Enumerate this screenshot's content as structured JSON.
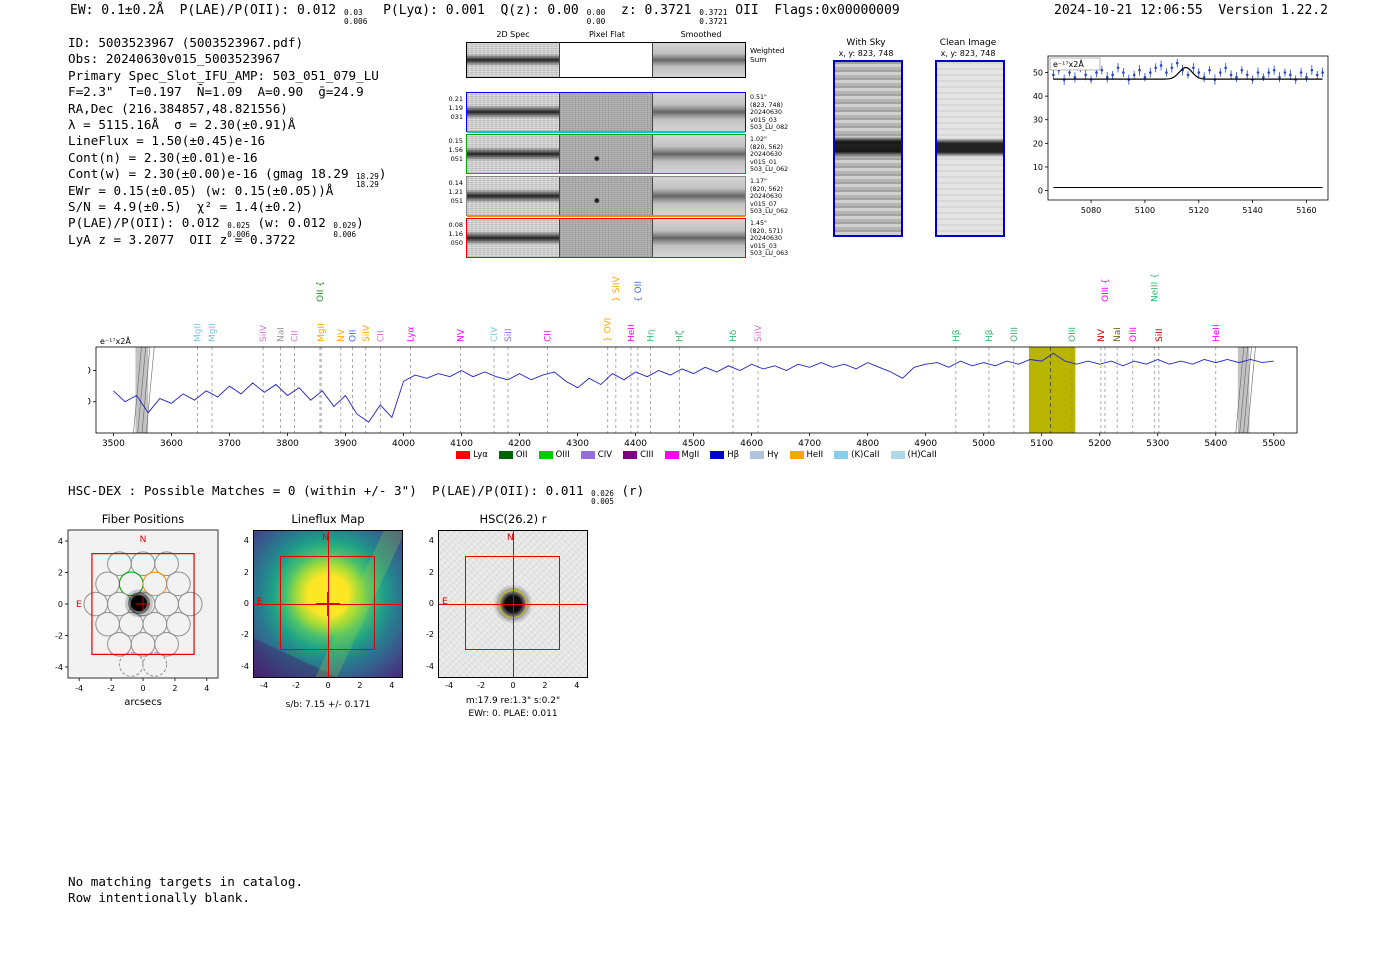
{
  "header": {
    "segments": [
      {
        "t": "EW: 0.1±0.2Å  P(LAE)/P(OII): 0.012 "
      },
      {
        "sup": "0.03",
        "sub": "0.006"
      },
      {
        "t": "  P(Lyα): 0.001  Q(z): 0.00 "
      },
      {
        "sup": "0.00",
        "sub": "0.00"
      },
      {
        "t": "  z: 0.3721 "
      },
      {
        "sup": "0.3721",
        "sub": "0.3721"
      },
      {
        "t": " OII  Flags:0x00000009"
      }
    ],
    "timestamp": "2024-10-21 12:06:55  Version 1.22.2"
  },
  "info": {
    "lines": [
      [
        {
          "t": "ID: 5003523967 (5003523967.pdf)"
        }
      ],
      [
        {
          "t": "Obs: 20240630v015_5003523967"
        }
      ],
      [
        {
          "t": "Primary Spec_Slot_IFU_AMP: 503_051_079_LU"
        }
      ],
      [
        {
          "t": "F=2.3\"  T=0.197  N̄=1.09  A=0.90  ḡ=24.9"
        }
      ],
      [
        {
          "t": "RA,Dec (216.384857,48.821556)"
        }
      ],
      [
        {
          "t": "λ = 5115.16Å  σ = 2.30(±0.91)Å"
        }
      ],
      [
        {
          "t": "LineFlux = 1.50(±0.45)e-16"
        }
      ],
      [
        {
          "t": "Cont(n) = 2.30(±0.01)e-16"
        }
      ],
      [
        {
          "t": "Cont(w) = 2.30(±0.00)e-16 (gmag 18.29 "
        },
        {
          "sup": "18.29",
          "sub": "18.29"
        },
        {
          "t": ")"
        }
      ],
      [
        {
          "t": "EWr = 0.15(±0.05) (w: 0.15(±0.05))Å"
        }
      ],
      [
        {
          "t": "S/N = 4.9(±0.5)  χ² = 1.4(±0.2)"
        }
      ],
      [
        {
          "t": "P(LAE)/P(OII): 0.012 "
        },
        {
          "sup": "0.025",
          "sub": "0.006"
        },
        {
          "t": " (w: 0.012 "
        },
        {
          "sup": "0.029",
          "sub": "0.006"
        },
        {
          "t": ")"
        }
      ],
      [
        {
          "t": "LyA z = 3.2077  OII z = 0.3722"
        }
      ]
    ]
  },
  "cutouts": {
    "col_titles": [
      "2D Spec",
      "Pixel Flat",
      "Smoothed"
    ],
    "weighted_label": [
      "Weighted",
      "Sum"
    ],
    "rows": [
      {
        "left": [
          "0.21",
          "1.19",
          "031"
        ],
        "right": [
          "0.51\"",
          "(823, 748)",
          "20240630",
          "v015_03",
          "503_LU_082"
        ],
        "border": "#0000ee",
        "accent": "#00c8c8"
      },
      {
        "left": [
          "0.15",
          "1.56",
          "051"
        ],
        "right": [
          "1.02\"",
          "(820, 562)",
          "20240630",
          "v015_01",
          "503_LU_062"
        ],
        "border": "#00aa00",
        "accent": ""
      },
      {
        "left": [
          "0.14",
          "1.21",
          "051"
        ],
        "right": [
          "1.17\"",
          "(820, 562)",
          "20240630",
          "v015_07",
          "503_LU_062"
        ],
        "border": "#888888",
        "accent": "#ff8800"
      },
      {
        "left": [
          "0.08",
          "1.16",
          "050"
        ],
        "right": [
          "1.45\"",
          "(820, 571)",
          "20240630",
          "v015_03",
          "503_LU_063"
        ],
        "border": "#ee0000",
        "accent": ""
      }
    ]
  },
  "sky_panels": {
    "with_sky": {
      "title": "With Sky",
      "subtitle": "x, y: 823, 748"
    },
    "clean": {
      "title": "Clean Image",
      "subtitle": "x, y: 823, 748"
    }
  },
  "matches": {
    "segments": [
      {
        "t": "HSC-DEX : Possible Matches = 0 (within +/- 3\")  P(LAE)/P(OII): 0.011 "
      },
      {
        "sup": "0.026",
        "sub": "0.005"
      },
      {
        "t": " (r)"
      }
    ]
  },
  "panels": {
    "ticks": [
      -4,
      -2,
      0,
      2,
      4
    ],
    "fiber": {
      "title": "Fiber Positions"
    },
    "lineflux": {
      "title": "Lineflux Map",
      "caption": "s/b: 7.15 +/- 0.171",
      "n": "N",
      "e": "E"
    },
    "hsc": {
      "title": "HSC(26.2) r",
      "caption1": "m:17.9 re:1.3\" s:0.2\"",
      "caption2": "EWr: 0. PLAE: 0.011",
      "n": "N",
      "e": "E"
    }
  },
  "footer": {
    "line1": "No matching targets in catalog.",
    "line2": "Row intentionally blank."
  },
  "chart_data": [
    {
      "type": "scatter",
      "annotation": "e⁻¹⁷x2Å",
      "xlim": [
        5064,
        5168
      ],
      "ylim": [
        -4,
        57
      ],
      "xticks": [
        5080,
        5100,
        5120,
        5140,
        5160
      ],
      "yticks": [
        0,
        10,
        20,
        30,
        40,
        50
      ],
      "x_start": 5066,
      "x_step": 2,
      "y": [
        49,
        51,
        47,
        50,
        48,
        52,
        49,
        47,
        50,
        51,
        48,
        49,
        52,
        50,
        47,
        49,
        51,
        48,
        50,
        52,
        53,
        50,
        52,
        54,
        51,
        49,
        52,
        50,
        48,
        51,
        47,
        50,
        52,
        49,
        48,
        51,
        49,
        47,
        50,
        48,
        50,
        51,
        48,
        50,
        49,
        47,
        50,
        48,
        51,
        49,
        50
      ],
      "yerr": [
        2.0,
        1.8,
        2.2,
        1.6,
        2.1,
        1.9,
        2.3,
        1.7,
        2.0,
        1.8,
        2.2,
        1.6,
        2.0,
        1.9,
        2.1,
        1.7,
        2.2,
        1.8,
        2.0,
        1.9,
        2.1,
        1.7,
        2.0,
        1.8,
        2.2,
        1.6,
        2.0,
        1.9,
        2.1,
        1.7,
        2.2,
        1.8,
        2.0,
        1.9,
        2.1,
        1.7,
        2.0,
        1.8,
        2.2,
        1.6,
        2.0,
        1.9,
        2.1,
        1.7,
        2.2,
        1.8,
        2.0,
        1.9,
        2.1,
        1.7,
        2.0
      ],
      "fit": {
        "baseline": 47.2,
        "amplitude": 5.0,
        "center": 5115.16,
        "sigma": 2.3
      },
      "residual_level": 1.3,
      "point_color": "#2244cc",
      "fit_color": "#000000"
    },
    {
      "type": "line",
      "annotation": "e⁻¹⁷x2Å",
      "xlim": [
        3470,
        5540
      ],
      "ylim": [
        0,
        55
      ],
      "xticks": [
        3500,
        3600,
        3700,
        3800,
        3900,
        4000,
        4100,
        4200,
        4300,
        4400,
        4500,
        4600,
        4700,
        4800,
        4900,
        5000,
        5100,
        5200,
        5300,
        5400,
        5500
      ],
      "yticks": [
        20,
        40
      ],
      "line_color": "#2222cc",
      "x_start": 3500,
      "x_step": 20,
      "y": [
        27,
        20,
        24,
        13,
        22,
        19,
        25,
        21,
        27,
        23,
        30,
        25,
        32,
        26,
        31,
        24,
        29,
        21,
        27,
        17,
        24,
        12,
        7,
        18,
        10,
        33,
        37,
        35,
        38,
        36,
        40,
        36,
        39,
        36,
        34,
        38,
        34,
        37,
        39,
        33,
        29,
        35,
        31,
        38,
        34,
        39,
        36,
        40,
        37,
        41,
        38,
        42,
        39,
        43,
        40,
        44,
        41,
        43,
        40,
        44,
        42,
        45,
        42,
        44,
        41,
        45,
        42,
        39,
        35,
        42,
        44,
        45,
        42,
        46,
        43,
        45,
        43,
        46,
        44,
        47,
        46,
        51,
        46,
        44,
        46,
        44,
        46,
        43,
        46,
        44,
        47,
        44,
        46,
        44,
        47,
        45,
        47,
        45,
        47,
        45,
        46
      ],
      "highlight_band": {
        "x0": 5078,
        "x1": 5158,
        "color": "#b8b400"
      },
      "hatch_bands": [
        {
          "x0": 3538,
          "x1": 3560
        },
        {
          "x0": 5438,
          "x1": 5458
        }
      ],
      "detection_line": 5115.16,
      "markers": [
        {
          "label": "MgII",
          "wl": 3645,
          "color": "#7ec8e3",
          "tier": 0
        },
        {
          "label": "MgII",
          "wl": 3670,
          "color": "#7ec8e3",
          "tier": 0
        },
        {
          "label": "SiIV",
          "wl": 3758,
          "color": "#da70d6",
          "tier": 0
        },
        {
          "label": "NaI",
          "wl": 3788,
          "color": "#999999",
          "tier": 0
        },
        {
          "label": "CII",
          "wl": 3812,
          "color": "#da70d6",
          "tier": 0
        },
        {
          "label": "OII {",
          "wl": 3856,
          "color": "#228b22",
          "tier": 1
        },
        {
          "label": "MgII",
          "wl": 3858,
          "color": "#ffa500",
          "tier": 0
        },
        {
          "label": "NV",
          "wl": 3892,
          "color": "#ffa500",
          "tier": 0
        },
        {
          "label": "OII",
          "wl": 3912,
          "color": "#4169e1",
          "tier": 0
        },
        {
          "label": "SiIV",
          "wl": 3935,
          "color": "#ffa500",
          "tier": 0
        },
        {
          "label": "CII",
          "wl": 3960,
          "color": "#da70d6",
          "tier": 0
        },
        {
          "label": "Lyα",
          "wl": 4012,
          "color": "#ff00ff",
          "tier": 0
        },
        {
          "label": "NV",
          "wl": 4098,
          "color": "#ff00ff",
          "tier": 0
        },
        {
          "label": "CIV",
          "wl": 4156,
          "color": "#7ec8e3",
          "tier": 0
        },
        {
          "label": "SiII",
          "wl": 4180,
          "color": "#9370db",
          "tier": 0
        },
        {
          "label": "CII",
          "wl": 4248,
          "color": "#ff00ff",
          "tier": 0
        },
        {
          "label": "} OVI",
          "wl": 4352,
          "color": "#ffa500",
          "tier": 0
        },
        {
          "label": "} SiIV",
          "wl": 4366,
          "color": "#ffa500",
          "tier": 1
        },
        {
          "label": "HeII",
          "wl": 4392,
          "color": "#ff00ff",
          "tier": 0
        },
        {
          "label": "{ OII",
          "wl": 4404,
          "color": "#4169e1",
          "tier": 1
        },
        {
          "label": "Hη",
          "wl": 4426,
          "color": "#3cb371",
          "tier": 0
        },
        {
          "label": "Hζ",
          "wl": 4476,
          "color": "#3cb371",
          "tier": 0
        },
        {
          "label": "Hδ",
          "wl": 4568,
          "color": "#3cb371",
          "tier": 0
        },
        {
          "label": "SiIV",
          "wl": 4611,
          "color": "#da70d6",
          "tier": 0
        },
        {
          "label": "Hβ",
          "wl": 4952,
          "color": "#3cb371",
          "tier": 0
        },
        {
          "label": "Hβ",
          "wl": 5009,
          "color": "#3cb371",
          "tier": 0
        },
        {
          "label": "OIII",
          "wl": 5052,
          "color": "#3cb371",
          "tier": 0
        },
        {
          "label": "OIII",
          "wl": 5152,
          "color": "#3cb371",
          "tier": 0
        },
        {
          "label": "NV",
          "wl": 5202,
          "color": "#cc0000",
          "tier": 0
        },
        {
          "label": "OIII {",
          "wl": 5209,
          "color": "#ff00ff",
          "tier": 1
        },
        {
          "label": "NaI",
          "wl": 5230,
          "color": "#6b6b2a",
          "tier": 0
        },
        {
          "label": "OIII",
          "wl": 5257,
          "color": "#ff00ff",
          "tier": 0
        },
        {
          "label": "NeIII {",
          "wl": 5294,
          "color": "#3cb371",
          "tier": 1
        },
        {
          "label": "SiII",
          "wl": 5302,
          "color": "#cc0000",
          "tier": 0
        },
        {
          "label": "HeII",
          "wl": 5400,
          "color": "#ff00ff",
          "tier": 0
        }
      ],
      "legend": [
        {
          "label": "Lyα",
          "color": "#ff0000"
        },
        {
          "label": "OII",
          "color": "#006400"
        },
        {
          "label": "OIII",
          "color": "#00cc00"
        },
        {
          "label": "CIV",
          "color": "#9370db"
        },
        {
          "label": "CIII",
          "color": "#800080"
        },
        {
          "label": "MgII",
          "color": "#ff00ff"
        },
        {
          "label": "Hβ",
          "color": "#0000cd"
        },
        {
          "label": "Hγ",
          "color": "#b0c4de"
        },
        {
          "label": "HeII",
          "color": "#ffa500"
        },
        {
          "label": "(K)CaII",
          "color": "#87ceeb"
        },
        {
          "label": "(H)CaII",
          "color": "#add8e6"
        }
      ]
    },
    {
      "type": "scatter",
      "title": "Fiber Positions",
      "xlabel": "arcsecs",
      "ticks": [
        -4,
        -2,
        0,
        2,
        4
      ],
      "fiber_radius": 0.74,
      "box": 3.2,
      "compass": {
        "n": "N",
        "e": "E"
      },
      "source": {
        "x": -0.25,
        "y": 0.05
      },
      "circles": [
        {
          "x": -1.48,
          "y": 2.56
        },
        {
          "x": 0,
          "y": 2.56
        },
        {
          "x": 1.48,
          "y": 2.56
        },
        {
          "x": -2.22,
          "y": 1.28
        },
        {
          "x": -0.74,
          "y": 1.28,
          "color": "#00a000"
        },
        {
          "x": 0.74,
          "y": 1.28,
          "color": "#ff8c00"
        },
        {
          "x": 2.22,
          "y": 1.28
        },
        {
          "x": -2.96,
          "y": 0
        },
        {
          "x": -1.48,
          "y": 0
        },
        {
          "x": 0,
          "y": 0
        },
        {
          "x": 1.48,
          "y": 0
        },
        {
          "x": 2.96,
          "y": 0
        },
        {
          "x": -2.22,
          "y": -1.28
        },
        {
          "x": -0.74,
          "y": -1.28
        },
        {
          "x": 0.74,
          "y": -1.28
        },
        {
          "x": 2.22,
          "y": -1.28
        },
        {
          "x": -1.48,
          "y": -2.56
        },
        {
          "x": 0,
          "y": -2.56
        },
        {
          "x": 1.48,
          "y": -2.56
        },
        {
          "x": -0.74,
          "y": -3.84,
          "dash": 1
        },
        {
          "x": 0.74,
          "y": -3.84,
          "dash": 1
        }
      ]
    }
  ]
}
